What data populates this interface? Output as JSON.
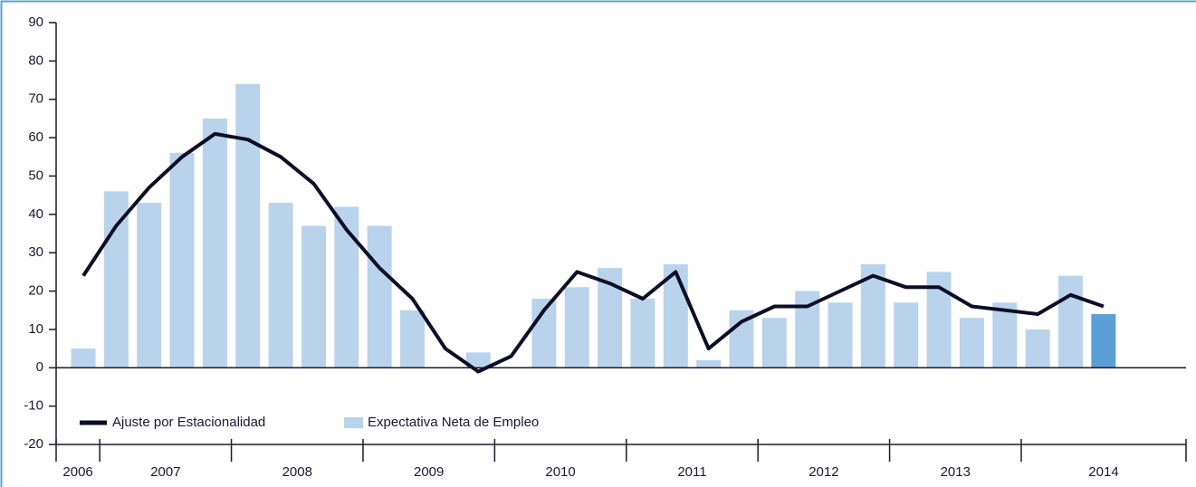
{
  "chart_data": {
    "type": "bar",
    "categories": [
      null,
      null,
      null,
      null,
      null,
      null,
      null,
      null,
      null,
      null,
      null,
      null,
      null,
      null,
      null,
      null,
      null,
      null,
      null,
      null,
      null,
      null,
      null,
      null,
      null,
      null,
      null,
      null,
      null,
      null,
      null,
      null
    ],
    "year_labels": [
      "2006",
      "2007",
      "2008",
      "2009",
      "2010",
      "2011",
      "2012",
      "2013",
      "2014"
    ],
    "series": [
      {
        "name": "Expectativa Neta de Empleo",
        "type": "bar",
        "color": "#b9d3ec",
        "colors": [
          "#b9d3ec",
          "#b9d3ec",
          "#b9d3ec",
          "#b9d3ec",
          "#b9d3ec",
          "#b9d3ec",
          "#b9d3ec",
          "#b9d3ec",
          "#b9d3ec",
          "#b9d3ec",
          "#b9d3ec",
          "#b9d3ec",
          "#b9d3ec",
          "#b9d3ec",
          "#b9d3ec",
          "#b9d3ec",
          "#b9d3ec",
          "#b9d3ec",
          "#b9d3ec",
          "#b9d3ec",
          "#b9d3ec",
          "#b9d3ec",
          "#b9d3ec",
          "#b9d3ec",
          "#b9d3ec",
          "#b9d3ec",
          "#b9d3ec",
          "#b9d3ec",
          "#b9d3ec",
          "#b9d3ec",
          "#b9d3ec",
          "#5aa0d6"
        ],
        "values": [
          5,
          46,
          43,
          56,
          65,
          74,
          43,
          37,
          42,
          37,
          15,
          0,
          4,
          0,
          18,
          21,
          26,
          18,
          27,
          2,
          15,
          13,
          20,
          17,
          27,
          17,
          25,
          13,
          17,
          10,
          24,
          14
        ]
      },
      {
        "name": "Ajuste por Estacionalidad",
        "type": "line",
        "color": "#0d0d26",
        "values": [
          24,
          37,
          47,
          55,
          61,
          59.5,
          55,
          48,
          36,
          26,
          18,
          5,
          -1,
          3,
          15,
          25,
          22,
          18,
          25,
          5,
          12,
          16,
          16,
          20,
          24,
          21,
          21,
          16,
          15,
          14,
          19,
          16
        ]
      }
    ],
    "ylim": [
      -20,
      90
    ],
    "yticks": [
      -20,
      -10,
      0,
      10,
      20,
      30,
      40,
      50,
      60,
      70,
      80,
      90
    ],
    "legend": "bottom-left",
    "frame_color": "#5aa0d6"
  }
}
